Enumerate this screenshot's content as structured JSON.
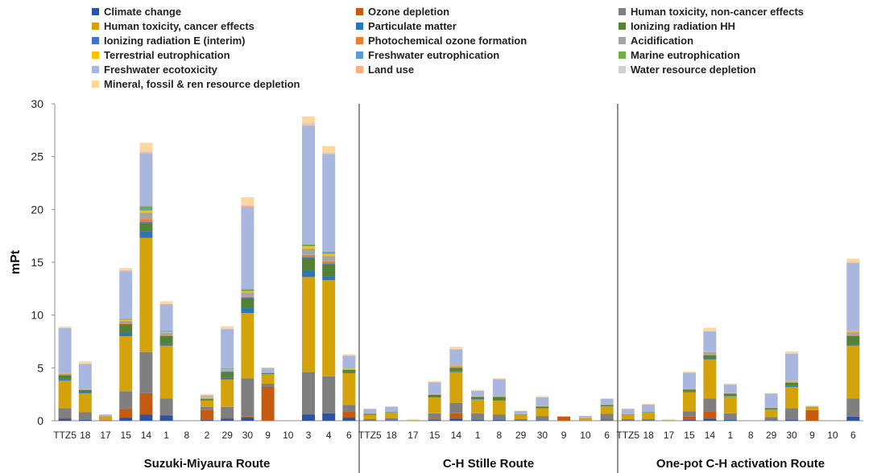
{
  "chart_data": {
    "type": "bar",
    "stacked": true,
    "ylabel": "mPt",
    "ylim": [
      0,
      30
    ],
    "yticks": [
      0,
      5,
      10,
      15,
      20,
      25,
      30
    ],
    "legend_position": "top",
    "groups": [
      {
        "name": "Suzuki-Miyaura Route",
        "categories": [
          "TTZ5",
          "18",
          "17",
          "15",
          "14",
          "1",
          "8",
          "2",
          "29",
          "30",
          "9",
          "10",
          "3",
          "4",
          "6"
        ]
      },
      {
        "name": "C-H Stille Route",
        "categories": [
          "TTZ5",
          "18",
          "17",
          "15",
          "14",
          "1",
          "8",
          "29",
          "30",
          "9",
          "10",
          "6"
        ]
      },
      {
        "name": "One-pot C-H activation Route",
        "categories": [
          "TTZ5",
          "18",
          "17",
          "15",
          "14",
          "1",
          "8",
          "29",
          "30",
          "9",
          "10",
          "6"
        ]
      }
    ],
    "series": [
      {
        "name": "Climate change",
        "color": "#2F52A0",
        "values": [
          [
            0.2,
            0.1,
            0,
            0.3,
            0.6,
            0.5,
            0,
            0.1,
            0.2,
            0.3,
            0,
            0,
            0.6,
            0.7,
            0.3
          ],
          [
            0.05,
            0.05,
            0,
            0.1,
            0.2,
            0.1,
            0.1,
            0.05,
            0.05,
            0,
            0,
            0.05
          ],
          [
            0.05,
            0.05,
            0,
            0.1,
            0.2,
            0.1,
            0,
            0.05,
            0.1,
            0,
            0,
            0.4
          ]
        ]
      },
      {
        "name": "Ozone depletion",
        "color": "#C55A11",
        "values": [
          [
            0.1,
            0,
            0.05,
            0.8,
            2.0,
            0,
            0,
            0.9,
            0.1,
            0.1,
            3.2,
            0,
            0,
            0,
            0.6
          ],
          [
            0,
            0,
            0,
            0.1,
            0.5,
            0,
            0,
            0,
            0,
            0.4,
            0,
            0.1
          ],
          [
            0,
            0,
            0,
            0.3,
            0.7,
            0,
            0,
            0,
            0,
            1.0,
            0,
            0
          ]
        ]
      },
      {
        "name": "Human toxicity, non-cancer effects",
        "color": "#7F7F7F",
        "values": [
          [
            0.9,
            0.7,
            0.05,
            1.7,
            3.9,
            1.6,
            0,
            0.3,
            1.0,
            3.6,
            0.3,
            0,
            4.0,
            3.5,
            0.6
          ],
          [
            0.1,
            0.2,
            0,
            0.5,
            1.0,
            0.6,
            0.5,
            0.1,
            0.4,
            0,
            0.05,
            0.5
          ],
          [
            0.1,
            0.1,
            0,
            0.5,
            1.2,
            0.6,
            0,
            0.3,
            1.1,
            0,
            0,
            1.7
          ]
        ]
      },
      {
        "name": "Human toxicity, cancer effects",
        "color": "#D4A20B",
        "values": [
          [
            2.6,
            1.8,
            0.3,
            5.2,
            10.8,
            5.0,
            0,
            0.6,
            2.6,
            6.2,
            0.9,
            0,
            9.0,
            9.1,
            3.0
          ],
          [
            0.4,
            0.5,
            0.05,
            1.5,
            2.9,
            1.3,
            1.3,
            0.4,
            0.7,
            0,
            0.2,
            0.7
          ],
          [
            0.4,
            0.6,
            0.05,
            1.8,
            3.7,
            1.6,
            0,
            0.7,
            2.0,
            0.3,
            0,
            5.0
          ]
        ]
      },
      {
        "name": "Particulate matter",
        "color": "#2E75B6",
        "values": [
          [
            0.1,
            0.1,
            0,
            0.3,
            0.6,
            0.2,
            0,
            0.05,
            0.2,
            0.5,
            0.05,
            0,
            0.6,
            0.4,
            0.1
          ],
          [
            0,
            0,
            0,
            0.05,
            0.1,
            0.05,
            0.05,
            0,
            0.05,
            0,
            0,
            0.05
          ],
          [
            0,
            0,
            0,
            0.05,
            0.1,
            0.05,
            0,
            0.05,
            0.1,
            0,
            0,
            0.1
          ]
        ]
      },
      {
        "name": "Ionizing radiation HH",
        "color": "#548235",
        "values": [
          [
            0.4,
            0.2,
            0.02,
            0.8,
            0.8,
            0.7,
            0,
            0.1,
            0.5,
            0.9,
            0.05,
            0,
            1.2,
            1.1,
            0.2
          ],
          [
            0.1,
            0.05,
            0,
            0.2,
            0.3,
            0.2,
            0.3,
            0.05,
            0.15,
            0,
            0,
            0.1
          ],
          [
            0.05,
            0.05,
            0,
            0.2,
            0.3,
            0.2,
            0,
            0.1,
            0.3,
            0,
            0,
            0.8
          ]
        ]
      },
      {
        "name": "Ionizing radiation E (interim)",
        "color": "#4472C4",
        "values": [
          [
            0.02,
            0.02,
            0,
            0.05,
            0.1,
            0.05,
            0,
            0,
            0.05,
            0.05,
            0,
            0,
            0.1,
            0.1,
            0
          ],
          [
            0,
            0,
            0,
            0,
            0.02,
            0,
            0,
            0,
            0,
            0,
            0,
            0
          ],
          [
            0,
            0,
            0,
            0,
            0.02,
            0,
            0,
            0,
            0,
            0,
            0,
            0.05
          ]
        ]
      },
      {
        "name": "Photochemical ozone formation",
        "color": "#ED7D31",
        "values": [
          [
            0.05,
            0.02,
            0,
            0.1,
            0.3,
            0.05,
            0,
            0.05,
            0.05,
            0.1,
            0,
            0,
            0.2,
            0.2,
            0
          ],
          [
            0,
            0,
            0,
            0.02,
            0.05,
            0,
            0,
            0,
            0,
            0,
            0,
            0
          ],
          [
            0,
            0,
            0,
            0.02,
            0.05,
            0,
            0,
            0,
            0,
            0,
            0,
            0.05
          ]
        ]
      },
      {
        "name": "Acidification",
        "color": "#A5A5A5",
        "values": [
          [
            0.1,
            0.05,
            0.02,
            0.2,
            0.6,
            0.2,
            0,
            0.05,
            0.1,
            0.4,
            0.1,
            0,
            0.6,
            0.5,
            0.1
          ],
          [
            0.02,
            0.02,
            0,
            0.05,
            0.1,
            0.05,
            0.05,
            0.02,
            0.05,
            0,
            0,
            0.05
          ],
          [
            0.02,
            0.02,
            0,
            0.05,
            0.2,
            0.05,
            0,
            0.05,
            0.1,
            0,
            0,
            0.3
          ]
        ]
      },
      {
        "name": "Terrestrial eutrophication",
        "color": "#FFC000",
        "values": [
          [
            0.05,
            0.05,
            0,
            0.1,
            0.2,
            0.1,
            0,
            0.05,
            0.05,
            0.1,
            0,
            0,
            0.2,
            0.2,
            0.05
          ],
          [
            0,
            0,
            0,
            0.02,
            0.05,
            0.02,
            0.02,
            0,
            0.02,
            0,
            0,
            0.02
          ],
          [
            0,
            0,
            0,
            0.02,
            0.05,
            0.02,
            0,
            0.02,
            0.05,
            0,
            0,
            0.1
          ]
        ]
      },
      {
        "name": "Freshwater eutrophication",
        "color": "#5B9BD5",
        "values": [
          [
            0.02,
            0.02,
            0,
            0.05,
            0.2,
            0.05,
            0,
            0,
            0.05,
            0.1,
            0,
            0,
            0.1,
            0.1,
            0
          ],
          [
            0,
            0,
            0,
            0,
            0.02,
            0,
            0,
            0,
            0,
            0,
            0,
            0
          ],
          [
            0,
            0,
            0,
            0,
            0.02,
            0,
            0,
            0,
            0,
            0,
            0,
            0.02
          ]
        ]
      },
      {
        "name": "Marine eutrophication",
        "color": "#70AD47",
        "values": [
          [
            0.02,
            0.02,
            0,
            0.05,
            0.2,
            0.05,
            0,
            0,
            0.05,
            0.1,
            0,
            0,
            0.1,
            0.1,
            0
          ],
          [
            0,
            0,
            0,
            0,
            0.02,
            0,
            0,
            0,
            0,
            0,
            0,
            0
          ],
          [
            0,
            0,
            0,
            0,
            0.02,
            0,
            0,
            0,
            0,
            0,
            0,
            0.02
          ]
        ]
      },
      {
        "name": "Freshwater ecotoxicity",
        "color": "#A9B7DE",
        "values": [
          [
            4.2,
            2.3,
            0.15,
            4.5,
            5.0,
            2.5,
            0,
            0.2,
            3.7,
            7.8,
            0.4,
            0,
            11.2,
            9.2,
            1.2
          ],
          [
            0.45,
            0.5,
            0.05,
            1.1,
            1.5,
            0.5,
            1.6,
            0.3,
            0.8,
            0,
            0.2,
            0.5
          ],
          [
            0.5,
            0.7,
            0.05,
            1.5,
            1.9,
            0.8,
            0,
            1.3,
            2.6,
            0.1,
            0,
            6.4
          ]
        ]
      },
      {
        "name": "Land use",
        "color": "#F4B183",
        "values": [
          [
            0.02,
            0.02,
            0,
            0.05,
            0.1,
            0.05,
            0,
            0,
            0.05,
            0.1,
            0,
            0,
            0.1,
            0.1,
            0.02
          ],
          [
            0,
            0,
            0,
            0,
            0.02,
            0,
            0,
            0,
            0,
            0,
            0,
            0
          ],
          [
            0,
            0,
            0,
            0,
            0.02,
            0,
            0,
            0,
            0,
            0,
            0,
            0.05
          ]
        ]
      },
      {
        "name": "Water resource depletion",
        "color": "#D0D0D0",
        "values": [
          [
            0.02,
            0.02,
            0,
            0.05,
            0.1,
            0.05,
            0,
            0,
            0.05,
            0.1,
            0,
            0,
            0.2,
            0.1,
            0.02
          ],
          [
            0,
            0,
            0,
            0,
            0.02,
            0,
            0,
            0,
            0,
            0,
            0,
            0
          ],
          [
            0,
            0,
            0,
            0,
            0.02,
            0,
            0,
            0,
            0,
            0,
            0,
            0.05
          ]
        ]
      },
      {
        "name": "Mineral, fossil & ren resource depletion",
        "color": "#FFD69C",
        "values": [
          [
            0.1,
            0.2,
            0.02,
            0.2,
            0.8,
            0.2,
            0,
            0.1,
            0.2,
            0.7,
            0.05,
            0,
            0.6,
            0.6,
            0.1
          ],
          [
            0.03,
            0.05,
            0,
            0.1,
            0.2,
            0.1,
            0.1,
            0.03,
            0.1,
            0,
            0,
            0.05
          ],
          [
            0.05,
            0.08,
            0,
            0.1,
            0.3,
            0.1,
            0,
            0.05,
            0.2,
            0,
            0,
            0.3
          ]
        ]
      }
    ]
  }
}
